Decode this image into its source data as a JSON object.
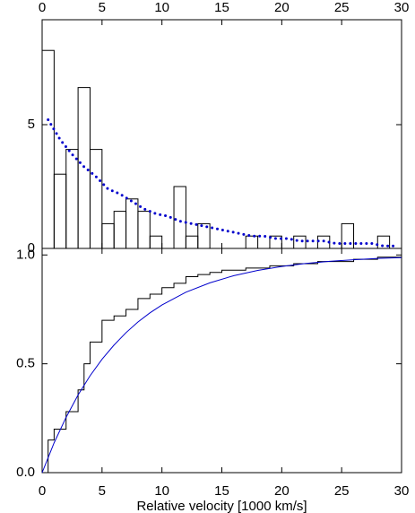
{
  "chart_data": [
    {
      "type": "histogram",
      "xaxis_position": "top",
      "bins": [
        0,
        1,
        2,
        3,
        4,
        5,
        6,
        7,
        8,
        9,
        10,
        11,
        12,
        13,
        14,
        15,
        16,
        17,
        18,
        19,
        20,
        21,
        22,
        23,
        24,
        25,
        26,
        27,
        28,
        29,
        30
      ],
      "values": [
        8,
        3,
        4,
        6.5,
        4,
        1,
        1.5,
        2,
        1.5,
        0.5,
        0,
        2.5,
        0.5,
        1,
        0,
        0,
        0,
        0.5,
        0,
        0.5,
        0,
        0.5,
        0,
        0.5,
        0,
        1,
        0,
        0,
        0.5,
        0
      ],
      "color": "#000000",
      "series": [
        {
          "color": "#0000cc",
          "linestyle": "dotted",
          "x": [
            0.5,
            1.5,
            2.5,
            3.5,
            4.5,
            5.5,
            6.5,
            7.5,
            8.5,
            9.5,
            10.5,
            11.5,
            12.5,
            13.5,
            14.5,
            15.5,
            16.5,
            17.5,
            18.5,
            19.5,
            20.5,
            21.5,
            22.5,
            23.5,
            24.5,
            25.5,
            26.5,
            27.5,
            28.5,
            29.5
          ],
          "values": [
            5.2,
            4.4,
            3.8,
            3.3,
            2.9,
            2.4,
            2.2,
            1.9,
            1.6,
            1.4,
            1.3,
            1.1,
            1.0,
            0.9,
            0.8,
            0.7,
            0.6,
            0.5,
            0.5,
            0.4,
            0.4,
            0.3,
            0.3,
            0.3,
            0.2,
            0.2,
            0.2,
            0.2,
            0.1,
            0.1
          ]
        }
      ],
      "xlim": [
        0,
        30
      ],
      "xticks": [
        0,
        5,
        10,
        15,
        20,
        25,
        30
      ],
      "ylim": [
        0,
        9.24
      ],
      "yticks": [
        0,
        5
      ]
    },
    {
      "type": "line",
      "xaxis_position": "bottom",
      "xlabel": "Relative velocity [1000 km/s]",
      "series": [
        {
          "color": "#000000",
          "drawstyle": "steps-post",
          "x": [
            0,
            0.5,
            1,
            2,
            3,
            3.5,
            4,
            5,
            6,
            7,
            8,
            9,
            10,
            11,
            12,
            13,
            14,
            15,
            17,
            19,
            21,
            23,
            26,
            28,
            30
          ],
          "values": [
            0,
            0.15,
            0.2,
            0.28,
            0.38,
            0.5,
            0.6,
            0.7,
            0.72,
            0.75,
            0.8,
            0.82,
            0.85,
            0.87,
            0.9,
            0.91,
            0.92,
            0.93,
            0.94,
            0.95,
            0.96,
            0.97,
            0.98,
            0.99,
            1.0
          ]
        },
        {
          "color": "#0000cc",
          "x": [
            0,
            1,
            2,
            3,
            4,
            5,
            6,
            7,
            8,
            9,
            10,
            12,
            14,
            16,
            18,
            20,
            22,
            24,
            26,
            28,
            30
          ],
          "values": [
            0,
            0.137,
            0.254,
            0.357,
            0.445,
            0.521,
            0.586,
            0.643,
            0.692,
            0.734,
            0.77,
            0.829,
            0.872,
            0.905,
            0.929,
            0.947,
            0.961,
            0.971,
            0.978,
            0.984,
            0.988
          ]
        }
      ],
      "xlim": [
        0,
        30
      ],
      "xticks": [
        0,
        5,
        10,
        15,
        20,
        25,
        30
      ],
      "ylim": [
        0,
        1.03
      ],
      "yticks": [
        {
          "value": 0,
          "label": "0.0"
        },
        {
          "value": 0.5,
          "label": "0.5"
        },
        {
          "value": 1,
          "label": "1.0"
        }
      ]
    }
  ]
}
